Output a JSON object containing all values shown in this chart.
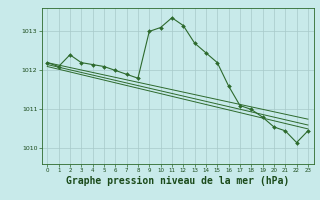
{
  "background_color": "#c8eaea",
  "grid_color": "#a8caca",
  "line_color": "#2d6a2d",
  "marker_color": "#2d6a2d",
  "title": "Graphe pression niveau de la mer (hPa)",
  "title_fontsize": 7.0,
  "title_color": "#1a4a1a",
  "xlim": [
    -0.5,
    23.5
  ],
  "ylim": [
    1009.6,
    1013.6
  ],
  "yticks": [
    1010,
    1011,
    1012,
    1013
  ],
  "xticks": [
    0,
    1,
    2,
    3,
    4,
    5,
    6,
    7,
    8,
    9,
    10,
    11,
    12,
    13,
    14,
    15,
    16,
    17,
    18,
    19,
    20,
    21,
    22,
    23
  ],
  "series": [
    {
      "x": [
        0,
        1,
        2,
        3,
        4,
        5,
        6,
        7,
        8,
        9,
        10,
        11,
        12,
        13,
        14,
        15,
        16,
        17,
        18,
        19,
        20,
        21,
        22,
        23
      ],
      "y": [
        1012.2,
        1012.1,
        1012.4,
        1012.2,
        1012.15,
        1012.1,
        1012.0,
        1011.9,
        1011.8,
        1013.0,
        1013.1,
        1013.35,
        1013.15,
        1012.7,
        1012.45,
        1012.2,
        1011.6,
        1011.1,
        1011.0,
        1010.8,
        1010.55,
        1010.45,
        1010.15,
        1010.45
      ],
      "with_markers": true
    },
    {
      "x": [
        0,
        23
      ],
      "y": [
        1012.2,
        1010.75
      ],
      "with_markers": false
    },
    {
      "x": [
        0,
        23
      ],
      "y": [
        1012.15,
        1010.6
      ],
      "with_markers": false
    },
    {
      "x": [
        0,
        23
      ],
      "y": [
        1012.1,
        1010.5
      ],
      "with_markers": false
    }
  ]
}
